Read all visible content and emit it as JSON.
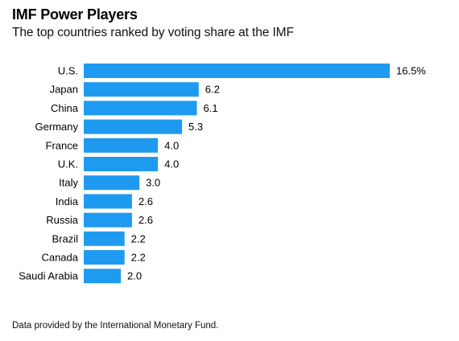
{
  "header": {
    "title": "IMF Power Players",
    "subtitle": "The top countries ranked by voting share at the IMF"
  },
  "footer": {
    "source": "Data provided by the International Monetary Fund."
  },
  "colors": {
    "bar": "#1E9AF0"
  },
  "chart_data": {
    "type": "bar",
    "orientation": "horizontal",
    "title": "IMF Power Players",
    "subtitle": "The top countries ranked by voting share at the IMF",
    "categories": [
      "U.S.",
      "Japan",
      "China",
      "Germany",
      "France",
      "U.K.",
      "Italy",
      "India",
      "Russia",
      "Brazil",
      "Canada",
      "Saudi Arabia"
    ],
    "values": [
      16.5,
      6.2,
      6.1,
      5.3,
      4.0,
      4.0,
      3.0,
      2.6,
      2.6,
      2.2,
      2.2,
      2.0
    ],
    "value_labels": [
      "16.5%",
      "6.2",
      "6.1",
      "5.3",
      "4.0",
      "4.0",
      "3.0",
      "2.6",
      "2.6",
      "2.2",
      "2.2",
      "2.0"
    ],
    "xlim": [
      0,
      16.5
    ],
    "grid": false,
    "legend": "none"
  }
}
